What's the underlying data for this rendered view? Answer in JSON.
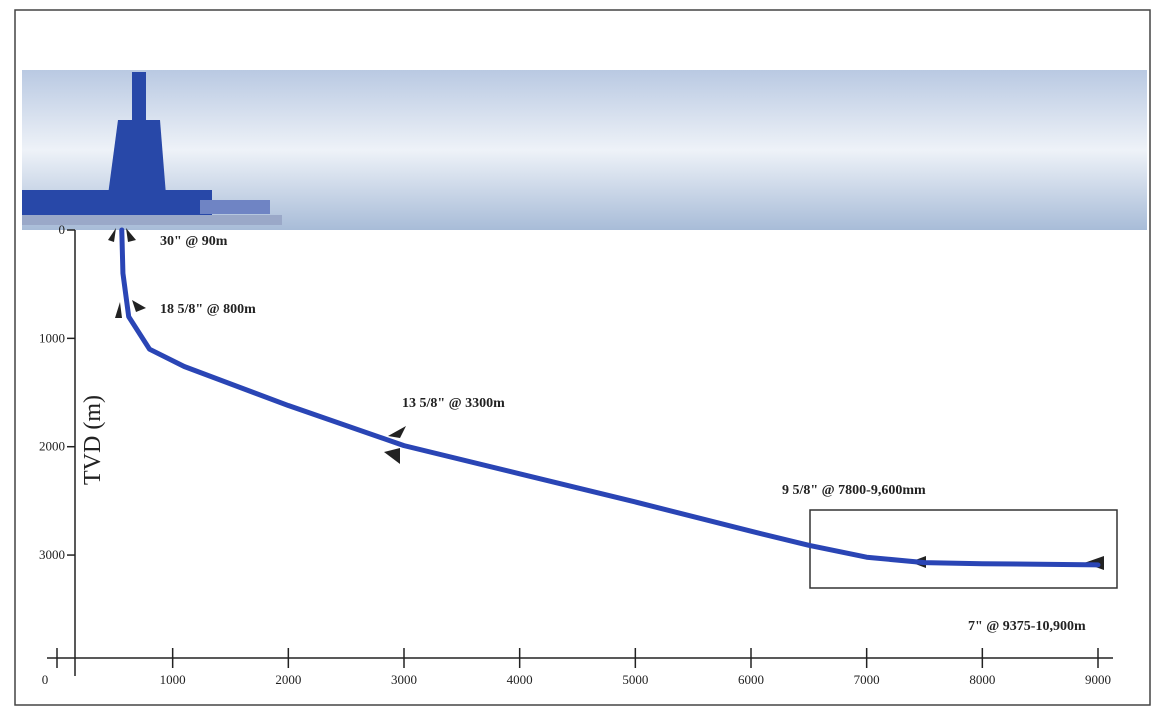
{
  "chart_data": {
    "type": "line",
    "y_label": "TVD (m)",
    "y_inverted": true,
    "xlim": [
      0,
      9000
    ],
    "xticks": [
      0,
      1000,
      2000,
      3000,
      4000,
      5000,
      6000,
      7000,
      8000,
      9000
    ],
    "ylim": [
      0,
      3950
    ],
    "yticks": [
      0,
      1000,
      2000,
      3000
    ],
    "color": "#2a45b5",
    "x": [
      560,
      570,
      620,
      800,
      1100,
      2000,
      3000,
      4000,
      5000,
      6000,
      6500,
      7000,
      7500,
      8000,
      9000
    ],
    "values": [
      0,
      400,
      800,
      1100,
      1260,
      1620,
      1990,
      2250,
      2510,
      2780,
      2910,
      3020,
      3070,
      3080,
      3090
    ],
    "annotations": [
      "30\" @ 90m",
      "18 5/8\" @ 800m",
      "13 5/8\" @ 3300m",
      "9 5/8\" @ 7800-9,600mm",
      "7\" @ 9375-10,900m"
    ]
  }
}
